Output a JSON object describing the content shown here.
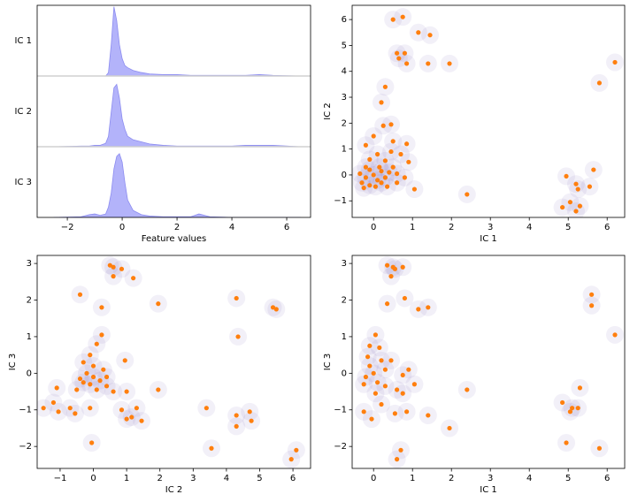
{
  "chart_data": [
    {
      "type": "ridgeline",
      "xlabel": "Feature values",
      "xlim": [
        -3.1,
        6.87
      ],
      "xticks": [
        {
          "value": -2,
          "label": "−2"
        },
        0,
        2,
        4,
        6
      ],
      "x": [
        -2.5,
        -1.5,
        -1.2,
        -1,
        -0.8,
        -0.6,
        -0.5,
        -0.4,
        -0.3,
        -0.2,
        -0.1,
        0,
        0.1,
        0.2,
        0.4,
        0.7,
        1,
        1.5,
        2,
        2.5,
        2.8,
        3,
        3.2,
        4,
        4.5,
        5,
        5.5,
        6.5
      ],
      "series": [
        {
          "name": "IC 1",
          "color": "#b3b3fa",
          "values": [
            0,
            0,
            0,
            0,
            0,
            0,
            0.05,
            0.45,
            1.0,
            0.8,
            0.45,
            0.25,
            0.15,
            0.12,
            0.08,
            0.05,
            0.03,
            0.02,
            0.02,
            0.01,
            0.01,
            0.01,
            0.01,
            0.01,
            0.01,
            0.02,
            0.01,
            0
          ]
        },
        {
          "name": "IC 2",
          "color": "#b3b3fa",
          "values": [
            0,
            0.01,
            0.01,
            0.02,
            0.02,
            0.05,
            0.15,
            0.5,
            0.85,
            0.9,
            0.7,
            0.4,
            0.25,
            0.15,
            0.1,
            0.07,
            0.04,
            0.02,
            0.01,
            0.01,
            0.01,
            0.01,
            0.01,
            0.01,
            0.02,
            0.02,
            0.02,
            0
          ]
        },
        {
          "name": "IC 3",
          "color": "#b3b3fa",
          "values": [
            0,
            0.01,
            0.04,
            0.05,
            0.03,
            0.05,
            0.15,
            0.35,
            0.7,
            0.88,
            0.92,
            0.8,
            0.5,
            0.25,
            0.1,
            0.04,
            0.02,
            0.01,
            0.01,
            0.01,
            0.05,
            0.03,
            0.01,
            0,
            0,
            0,
            0,
            0
          ]
        }
      ]
    },
    {
      "type": "scatter",
      "xlabel": "IC 1",
      "ylabel": "IC 2",
      "color": "#ff7f0e",
      "density_color": "#7b68b8",
      "xlim": [
        -0.55,
        6.45
      ],
      "ylim": [
        -1.64,
        6.55
      ],
      "xticks": [
        0,
        1,
        2,
        3,
        4,
        5,
        6
      ],
      "yticks": [
        {
          "value": -1,
          "label": "−1"
        },
        0,
        1,
        2,
        3,
        4,
        5,
        6
      ],
      "x": [
        0.5,
        0.75,
        1.15,
        1.45,
        0.6,
        0.8,
        0.85,
        0.65,
        1.4,
        1.95,
        6.2,
        5.8,
        0.3,
        0.2,
        0.25,
        0.45,
        0.0,
        -0.2,
        0.5,
        0.45,
        0.85,
        0.7,
        0.9,
        0.1,
        -0.1,
        0.3,
        0.5,
        -0.2,
        0.15,
        0.8,
        1.05,
        2.4,
        4.95,
        5.65,
        5.2,
        5.55,
        5.25,
        4.85,
        5.05,
        5.2,
        5.3,
        -0.3,
        -0.2,
        -0.1,
        0,
        0.1,
        0.2,
        -0.25,
        0.3,
        0.4,
        0.2,
        -0.1,
        0.05,
        0.35,
        0.6,
        0.6,
        -0.35
      ],
      "y": [
        6.0,
        6.1,
        5.5,
        5.4,
        4.7,
        4.7,
        4.3,
        4.5,
        4.3,
        4.3,
        4.35,
        3.55,
        3.4,
        2.8,
        1.9,
        1.95,
        1.5,
        1.15,
        1.3,
        0.9,
        1.2,
        0.8,
        0.5,
        0.8,
        0.6,
        0.55,
        0.3,
        0.3,
        0.3,
        -0.1,
        -0.55,
        -0.75,
        -0.05,
        0.2,
        -0.35,
        -0.45,
        -0.55,
        -1.25,
        -1.05,
        -1.4,
        -1.2,
        -0.3,
        -0.1,
        -0.4,
        0,
        -0.2,
        -0.3,
        -0.5,
        -0.1,
        0.1,
        0.15,
        0.2,
        -0.45,
        -0.45,
        -0.3,
        0.05,
        0.05
      ]
    },
    {
      "type": "scatter",
      "xlabel": "IC 2",
      "ylabel": "IC 3",
      "color": "#ff7f0e",
      "density_color": "#7b68b8",
      "xlim": [
        -1.69,
        6.53
      ],
      "ylim": [
        -2.6,
        3.22
      ],
      "xticks": [
        {
          "value": -1,
          "label": "−1"
        },
        0,
        1,
        2,
        3,
        4,
        5,
        6
      ],
      "yticks": [
        {
          "value": -2,
          "label": "−2"
        },
        {
          "value": -1,
          "label": "−1"
        },
        0,
        1,
        2,
        3
      ],
      "x": [
        0.5,
        0.6,
        0.85,
        1.2,
        0.6,
        -0.4,
        0.25,
        1.95,
        4.3,
        5.4,
        5.5,
        4.35,
        0.25,
        0.1,
        -0.1,
        0.95,
        -0.3,
        0,
        0.3,
        -0.2,
        0,
        0.2,
        -0.1,
        0.4,
        -0.4,
        0.1,
        -0.5,
        -1.1,
        0.6,
        1.0,
        1.95,
        -0.7,
        -1.5,
        -1.2,
        -1.05,
        -0.55,
        -0.1,
        0.85,
        1.0,
        1.15,
        1.3,
        1.45,
        3.4,
        4.3,
        4.3,
        4.7,
        4.75,
        -0.05,
        3.55,
        6.1,
        5.95,
        0.4,
        -0.3
      ],
      "y": [
        2.95,
        2.9,
        2.85,
        2.6,
        2.65,
        2.15,
        1.8,
        1.9,
        2.05,
        1.8,
        1.75,
        1.0,
        1.05,
        0.8,
        0.5,
        0.35,
        0.3,
        0.2,
        0.1,
        0,
        -0.1,
        -0.2,
        -0.3,
        -0.35,
        -0.15,
        -0.45,
        -0.45,
        -0.4,
        -0.5,
        -0.5,
        -0.45,
        -0.95,
        -0.95,
        -0.8,
        -1.05,
        -1.1,
        -0.95,
        -1.0,
        -1.25,
        -1.2,
        -0.95,
        -1.3,
        -0.95,
        -1.15,
        -1.45,
        -1.05,
        -1.3,
        -1.9,
        -2.05,
        -2.1,
        -2.35,
        -0.1,
        -0.25
      ]
    },
    {
      "type": "scatter",
      "xlabel": "IC 1",
      "ylabel": "IC 3",
      "color": "#ff7f0e",
      "density_color": "#7b68b8",
      "xlim": [
        -0.55,
        6.45
      ],
      "ylim": [
        -2.6,
        3.22
      ],
      "xticks": [
        0,
        1,
        2,
        3,
        4,
        5,
        6
      ],
      "yticks": [
        {
          "value": -2,
          "label": "−2"
        },
        {
          "value": -1,
          "label": "−1"
        },
        0,
        1,
        2,
        3
      ],
      "x": [
        0.35,
        0.5,
        0.55,
        0.75,
        0.45,
        0.35,
        0.8,
        1.15,
        1.4,
        5.6,
        5.6,
        6.2,
        0.05,
        -0.1,
        0.15,
        0.2,
        0.45,
        0.9,
        0.75,
        0,
        -0.2,
        0.1,
        -0.1,
        0.3,
        0.3,
        -0.25,
        0.6,
        0.75,
        1.05,
        2.4,
        5.3,
        4.85,
        5.1,
        5.25,
        5.05,
        -0.25,
        0.2,
        -0.05,
        0.55,
        0.85,
        1.4,
        1.95,
        4.95,
        5.8,
        0.7,
        0.6,
        0.05,
        -0.15
      ],
      "y": [
        2.95,
        2.9,
        2.85,
        2.9,
        2.65,
        1.9,
        2.05,
        1.75,
        1.8,
        2.15,
        1.85,
        1.05,
        1.05,
        0.75,
        0.7,
        0.35,
        0.35,
        0.1,
        -0.05,
        0,
        -0.1,
        -0.25,
        0.2,
        0.1,
        -0.35,
        -0.3,
        -0.45,
        -0.55,
        -0.3,
        -0.45,
        -0.4,
        -0.8,
        -0.95,
        -0.95,
        -1.05,
        -1.05,
        -0.85,
        -1.25,
        -1.1,
        -1.05,
        -1.15,
        -1.5,
        -1.9,
        -2.05,
        -2.1,
        -2.35,
        -0.55,
        0.45
      ]
    }
  ]
}
